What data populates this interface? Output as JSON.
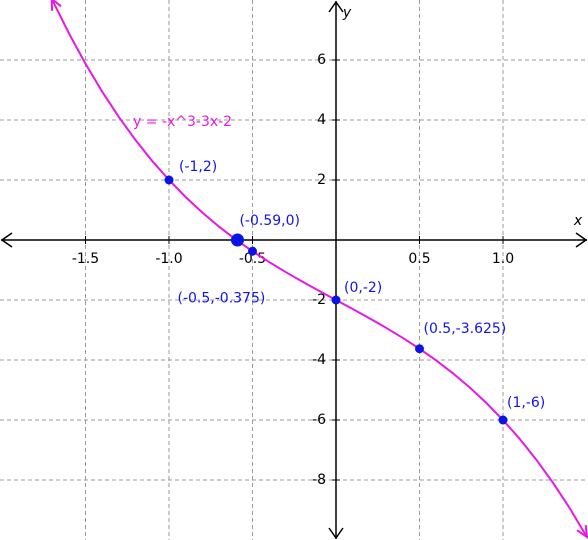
{
  "chart_data": {
    "type": "line",
    "xlabel": "x",
    "ylabel": "y",
    "xlim": [
      -2.012,
      1.509
    ],
    "ylim": [
      -10,
      8
    ],
    "xticks": [
      {
        "value": -1.5,
        "label": "-1.5"
      },
      {
        "value": -1,
        "label": "-1.0"
      },
      {
        "value": -0.5,
        "label": "-0.5"
      },
      {
        "value": 0.5,
        "label": "0.5"
      },
      {
        "value": 1,
        "label": "1.0"
      }
    ],
    "yticks": [
      6,
      4,
      2,
      -2,
      -4,
      -6,
      -8
    ],
    "grid": true,
    "x": [
      -1.7,
      -1.6,
      -1.5,
      -1.4,
      -1.3,
      -1.2,
      -1.1,
      -1.0,
      -0.9,
      -0.8,
      -0.7,
      -0.6,
      -0.5,
      -0.4,
      -0.3,
      -0.2,
      -0.1,
      0,
      0.1,
      0.2,
      0.3,
      0.4,
      0.5,
      0.6,
      0.7,
      0.8,
      0.9,
      1.0,
      1.1,
      1.2,
      1.3,
      1.4,
      1.5
    ],
    "series": [
      {
        "name": "y = -x^3-3x-2",
        "color": "#e619e6",
        "values": [
          8.013,
          6.896,
          5.875,
          4.944,
          4.097,
          3.328,
          2.631,
          2,
          1.429,
          0.912,
          0.443,
          0.016,
          -0.375,
          -0.736,
          -1.073,
          -1.392,
          -1.699,
          -2,
          -2.301,
          -2.608,
          -2.927,
          -3.264,
          -3.625,
          -4.016,
          -4.443,
          -4.912,
          -5.429,
          -6,
          -6.631,
          -7.328,
          -8.097,
          -8.944,
          -9.875
        ]
      }
    ],
    "points": [
      {
        "x": -1,
        "y": 2,
        "label": "(-1,2)"
      },
      {
        "x": -0.59,
        "y": 0,
        "label": "(-0.59,0)"
      },
      {
        "x": -0.5,
        "y": -0.375,
        "label": "(-0.5,-0.375)"
      },
      {
        "x": 0,
        "y": -2,
        "label": "(0,-2)"
      },
      {
        "x": 0.5,
        "y": -3.625,
        "label": "(0.5,-3.625)"
      },
      {
        "x": 1,
        "y": -6,
        "label": "(1,-6)"
      }
    ],
    "point_color": "#0a14e6"
  }
}
